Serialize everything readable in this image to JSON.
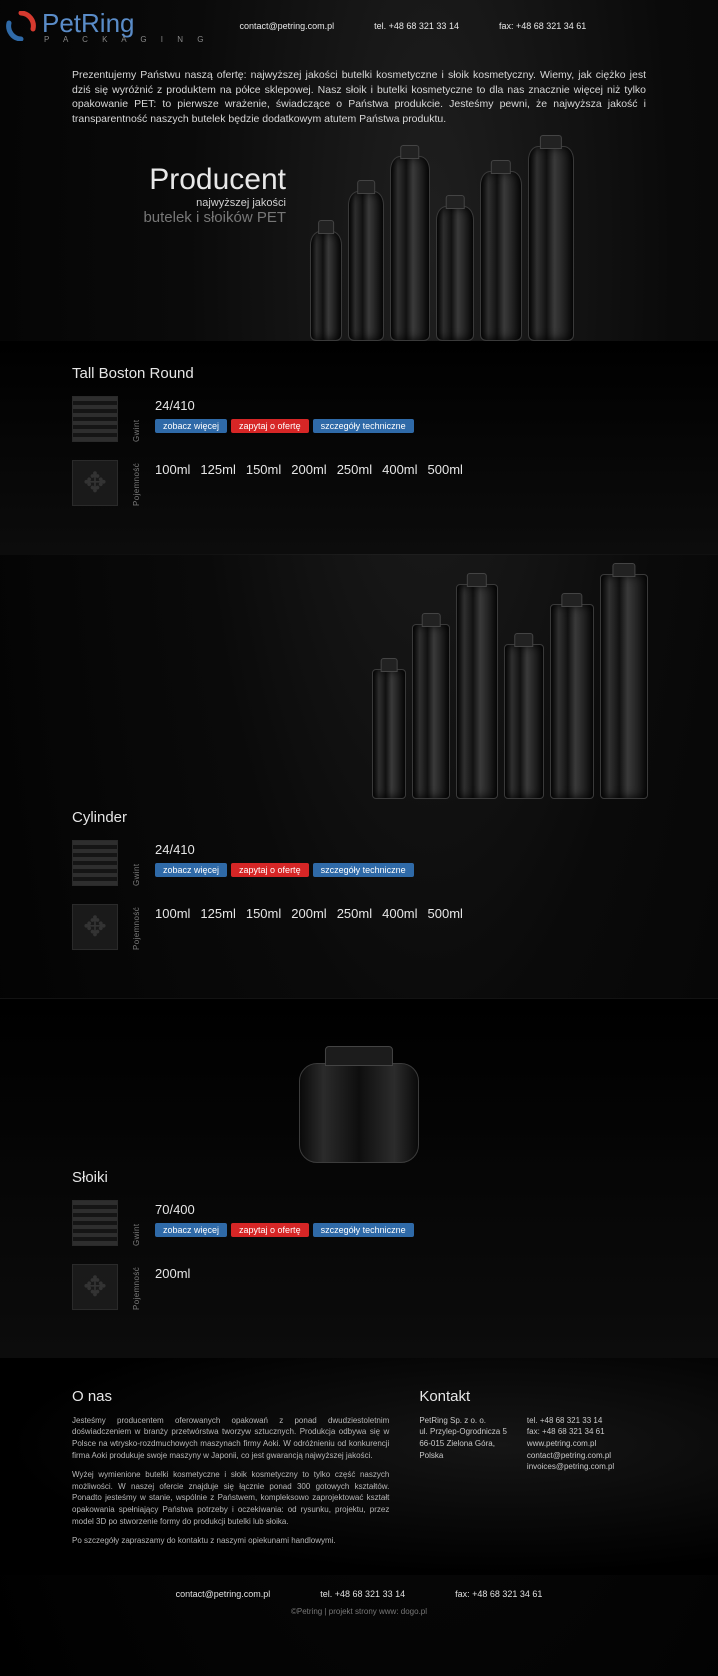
{
  "header": {
    "brand": "PetRing",
    "brand_sub": "P A C K A G I N G",
    "email": "contact@petring.com.pl",
    "tel": "tel. +48 68 321 33 14",
    "fax": "fax: +48 68 321 34 61",
    "logo_colors": {
      "red": "#d63a2f",
      "blue": "#2f6aa8"
    }
  },
  "intro": "Prezentujemy Państwu naszą ofertę: najwyższej jakości butelki kosmetyczne i słoik kosmetyczny. Wiemy, jak ciężko jest dziś się wyróżnić z produktem na półce sklepowej. Nasz słoik i butelki kosmetyczne to dla nas znacznie więcej niż tylko opakowanie PET: to pierwsze wrażenie, świadczące o Państwa produkcie. Jesteśmy pewni, że najwyższa jakość i transparentność naszych butelek będzie dodatkowym atutem Państwa produktu.",
  "hero": {
    "title": "Producent",
    "line1": "najwyższej jakości",
    "line2": "butelek i słoików PET"
  },
  "labels": {
    "thread": "Gwint",
    "capacity": "Pojemność"
  },
  "buttons": {
    "more": "zobacz więcej",
    "ask": "zapytaj o ofertę",
    "tech": "szczegóły techniczne",
    "colors": {
      "more": "#2f6aa8",
      "ask": "#d62626",
      "tech": "#2f6aa8"
    }
  },
  "products": [
    {
      "name": "Tall Boston Round",
      "thread": "24/410",
      "capacities": [
        "100ml",
        "125ml",
        "150ml",
        "200ml",
        "250ml",
        "400ml",
        "500ml"
      ]
    },
    {
      "name": "Cylinder",
      "thread": "24/410",
      "capacities": [
        "100ml",
        "125ml",
        "150ml",
        "200ml",
        "250ml",
        "400ml",
        "500ml"
      ]
    },
    {
      "name": "Słoiki",
      "thread": "70/400",
      "capacities": [
        "200ml"
      ]
    }
  ],
  "about": {
    "title": "O nas",
    "p1": "Jesteśmy producentem oferowanych opakowań z ponad dwudziestoletnim doświadczeniem w branży przetwórstwa tworzyw sztucznych. Produkcja odbywa się w Polsce na wtrysko-rozdmuchowych maszynach firmy Aoki. W odróżnieniu od konkurencji firma Aoki produkuje swoje maszyny w Japonii, co jest gwarancją najwyższej jakości.",
    "p2": "Wyżej wymienione butelki kosmetyczne i słoik kosmetyczny to tylko część naszych możliwości. W naszej ofercie znajduje się łącznie ponad 300 gotowych kształtów. Ponadto jesteśmy w stanie, wspólnie z Państwem, kompleksowo zaprojektować kształt opakowania spełniający Państwa potrzeby i oczekiwania: od rysunku, projektu, przez model 3D po stworzenie formy do produkcji butelki lub słoika.",
    "p3": "Po szczegóły zapraszamy do kontaktu z naszymi opiekunami handlowymi."
  },
  "contact": {
    "title": "Kontakt",
    "addr": [
      "PetRing Sp. z o. o.",
      "ul. Przylep-Ogrodnicza 5",
      "66-015 Zielona Góra,",
      "Polska"
    ],
    "info": [
      "tel. +48 68 321 33 14",
      "fax: +48 68 321 34 61",
      "www.petring.com.pl",
      "contact@petring.com.pl",
      "invoices@petring.com.pl"
    ]
  },
  "footer": {
    "email": "contact@petring.com.pl",
    "tel": "tel. +48 68 321 33 14",
    "fax": "fax: +48 68 321 34 61",
    "credit": "©Petring | projekt strony www: dogo.pl"
  }
}
